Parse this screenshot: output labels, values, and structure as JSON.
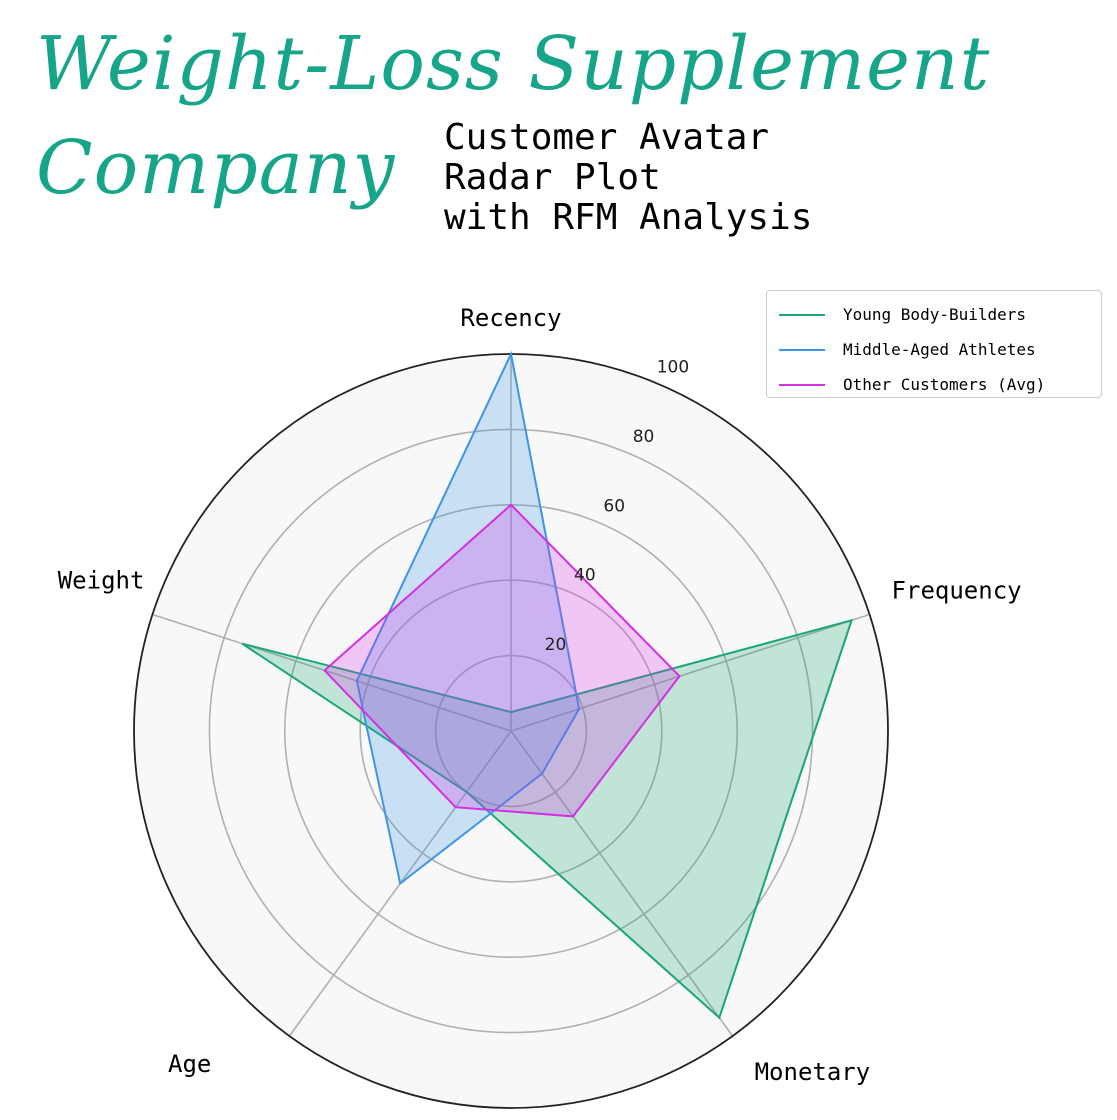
{
  "header": {
    "title_line1": "Weight-Loss Supplement",
    "title_line2": "Company",
    "subtitle_line1": "Customer Avatar",
    "subtitle_line2": "Radar Plot",
    "subtitle_line3": "with RFM Analysis"
  },
  "colors": {
    "title": "#17a589",
    "grid": "#b0b0b0",
    "plot_background": "#f8f8f8",
    "outer_ring": "#222222"
  },
  "chart_data": {
    "type": "radar",
    "categories": [
      "Recency",
      "Frequency",
      "Monetary",
      "Age",
      "Weight"
    ],
    "rlim": [
      0,
      100
    ],
    "r_ticks": [
      20,
      40,
      60,
      80,
      100
    ],
    "grid": true,
    "legend_position": "top-right",
    "series": [
      {
        "name": "Young Body-Builders",
        "values": [
          5,
          95,
          94,
          20,
          75
        ],
        "color": "#1aa872"
      },
      {
        "name": "Middle-Aged Athletes",
        "values": [
          100,
          19,
          14,
          50,
          43
        ],
        "color": "#3d95e8"
      },
      {
        "name": "Other Customers (Avg)",
        "values": [
          60,
          47,
          28,
          25,
          52
        ],
        "color": "#d42ee6"
      }
    ]
  }
}
